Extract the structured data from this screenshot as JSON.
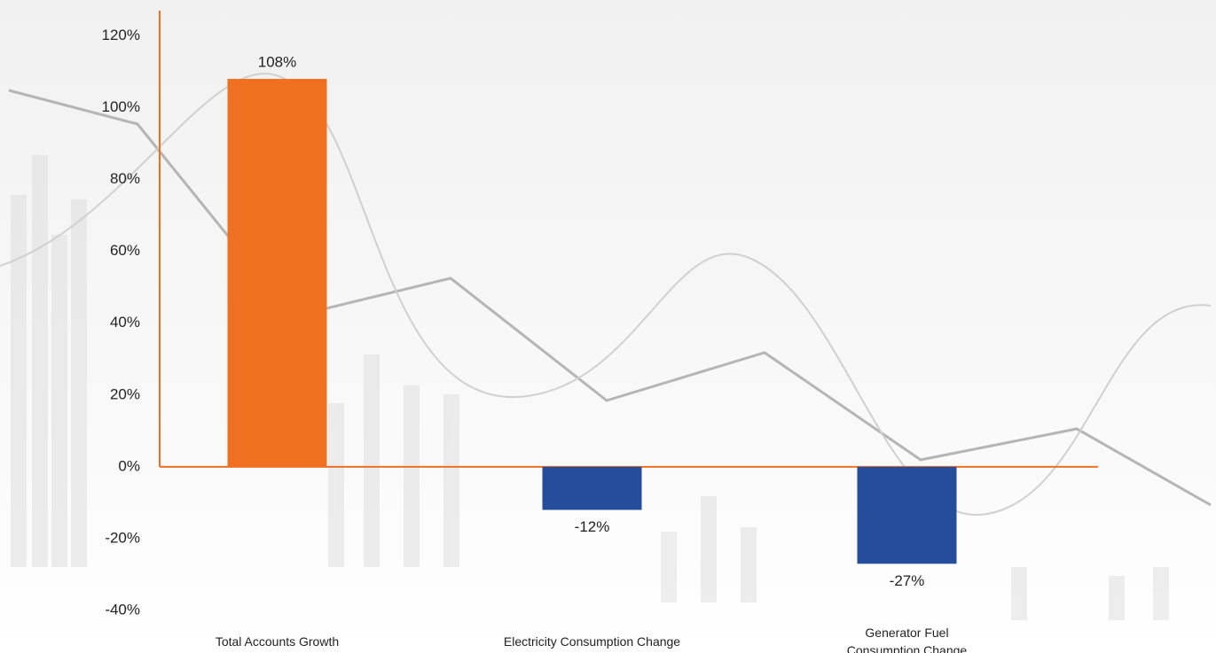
{
  "chart_data": {
    "type": "bar",
    "categories": [
      "Total Accounts Growth",
      "Electricity Consumption Change",
      "Generator Fuel\nConsumption Change"
    ],
    "values": [
      108,
      -12,
      -27
    ],
    "value_labels": [
      "108%",
      "-12%",
      "-27%"
    ],
    "colors": [
      "#f07022",
      "#264d99",
      "#264d99"
    ],
    "axis_color": "#f07022",
    "ylim": [
      -40,
      127
    ],
    "yticks": [
      {
        "value": -40,
        "label": "-40%"
      },
      {
        "value": -20,
        "label": "-20%"
      },
      {
        "value": 0,
        "label": "0%"
      },
      {
        "value": 20,
        "label": "20%"
      },
      {
        "value": 40,
        "label": "40%"
      },
      {
        "value": 60,
        "label": "60%"
      },
      {
        "value": 80,
        "label": "80%"
      },
      {
        "value": 100,
        "label": "100%"
      },
      {
        "value": 120,
        "label": "120%"
      }
    ],
    "grid": false
  }
}
